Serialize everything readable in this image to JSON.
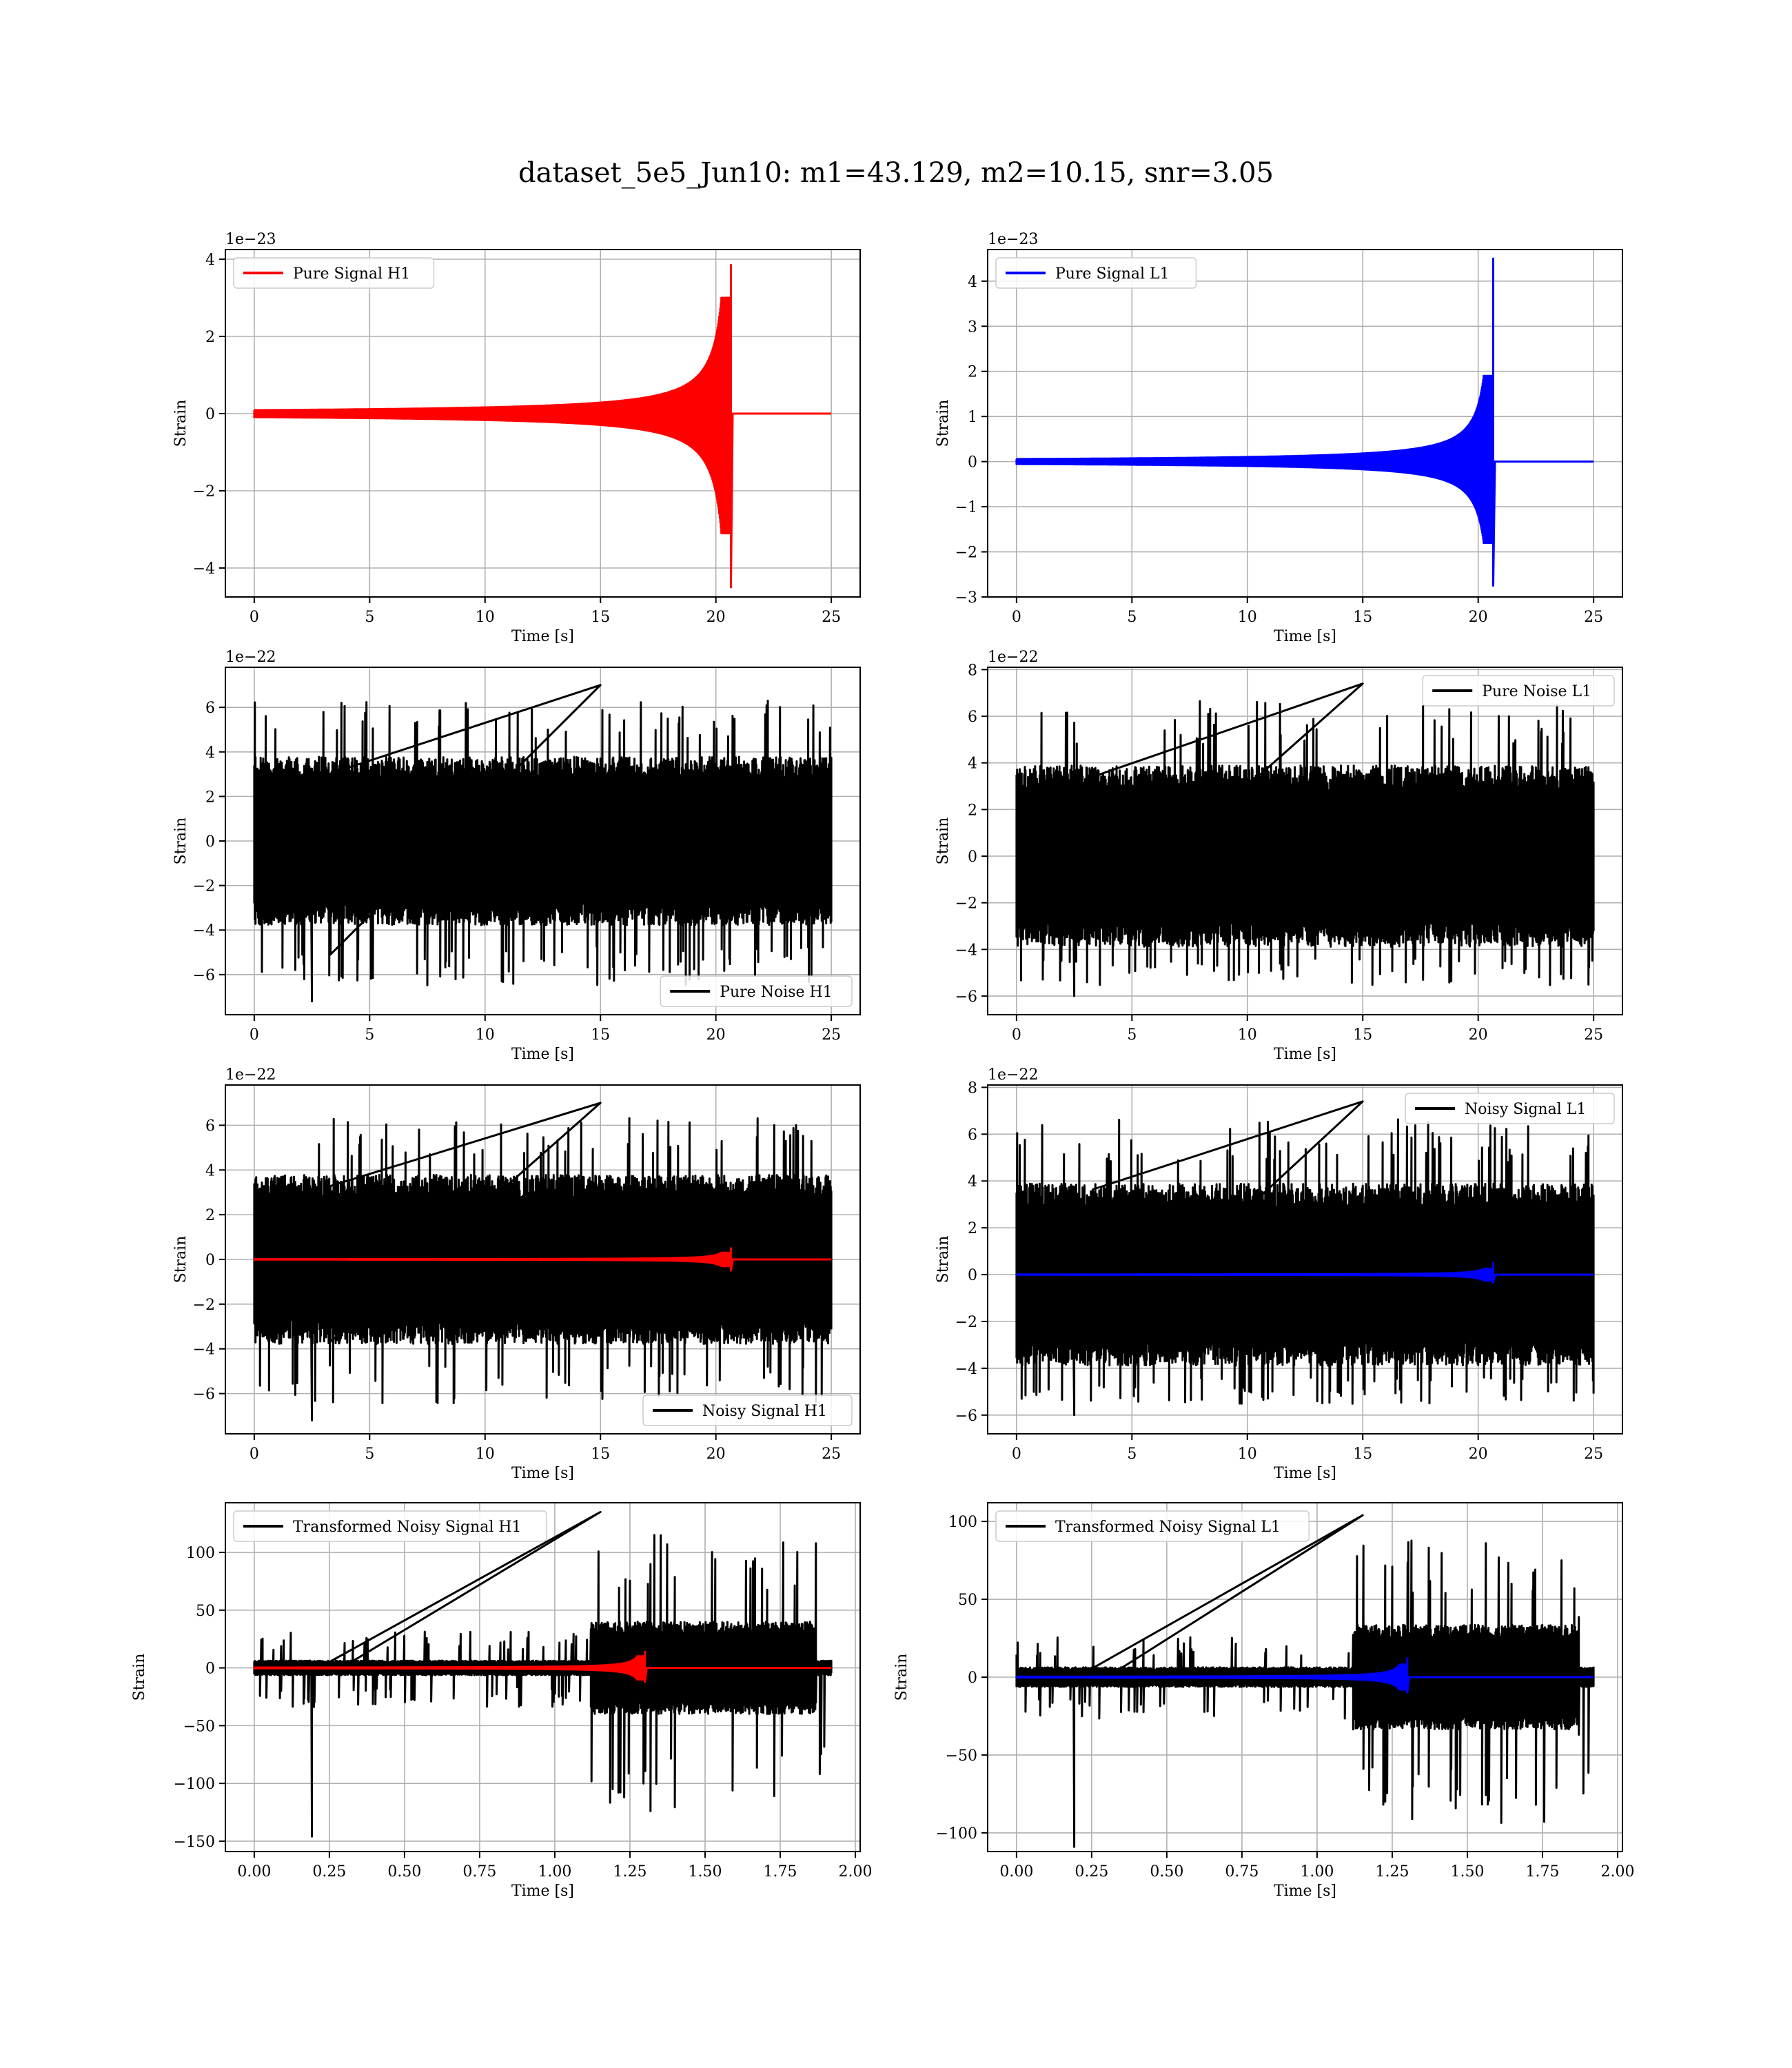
{
  "title": "dataset_5e5_Jun10: m1=43.129, m2=10.15, snr=3.05",
  "colors": {
    "h1_signal": "#ff0000",
    "l1_signal": "#0000ff",
    "noise": "#000000",
    "grid": "#b0b0b0"
  },
  "chart_data": [
    {
      "id": "pure-signal-h1",
      "type": "line",
      "xlabel": "Time [s]",
      "ylabel": "Strain",
      "offset_text": "1e−23",
      "xlim": [
        -1.25,
        26.25
      ],
      "ylim": [
        -4.75,
        4.25
      ],
      "xticks": [
        0,
        5,
        10,
        15,
        20,
        25
      ],
      "xtick_labels": [
        "0",
        "5",
        "10",
        "15",
        "20",
        "25"
      ],
      "yticks": [
        -4,
        -2,
        0,
        2,
        4
      ],
      "ytick_labels": [
        "−4",
        "−2",
        "0",
        "2",
        "4"
      ],
      "legend": "upper-left",
      "series": [
        {
          "name": "Pure Signal H1",
          "color": "#ff0000",
          "kind": "chirp",
          "end": 25,
          "merger": 20.65,
          "env_pos": 3.0,
          "env_neg": -3.1,
          "peak_pos": 3.85,
          "peak_neg": -4.5,
          "x_start": 0
        }
      ]
    },
    {
      "id": "pure-signal-l1",
      "type": "line",
      "xlabel": "Time [s]",
      "ylabel": "Strain",
      "offset_text": "1e−23",
      "xlim": [
        -1.25,
        26.25
      ],
      "ylim": [
        -3.0,
        4.7
      ],
      "xticks": [
        0,
        5,
        10,
        15,
        20,
        25
      ],
      "xtick_labels": [
        "0",
        "5",
        "10",
        "15",
        "20",
        "25"
      ],
      "yticks": [
        -3,
        -2,
        -1,
        0,
        1,
        2,
        3,
        4
      ],
      "ytick_labels": [
        "−3",
        "−2",
        "−1",
        "0",
        "1",
        "2",
        "3",
        "4"
      ],
      "legend": "upper-left",
      "series": [
        {
          "name": "Pure Signal L1",
          "color": "#0000ff",
          "kind": "chirp",
          "end": 25,
          "merger": 20.65,
          "env_pos": 1.9,
          "env_neg": -1.8,
          "peak_pos": 4.5,
          "peak_neg": -2.75,
          "x_start": 0
        }
      ]
    },
    {
      "id": "pure-noise-h1",
      "type": "line",
      "xlabel": "Time [s]",
      "ylabel": "Strain",
      "offset_text": "1e−22",
      "xlim": [
        -1.25,
        26.25
      ],
      "ylim": [
        -7.8,
        7.8
      ],
      "xticks": [
        0,
        5,
        10,
        15,
        20,
        25
      ],
      "xtick_labels": [
        "0",
        "5",
        "10",
        "15",
        "20",
        "25"
      ],
      "yticks": [
        -6,
        -4,
        -2,
        0,
        2,
        4,
        6
      ],
      "ytick_labels": [
        "−6",
        "−4",
        "−2",
        "0",
        "2",
        "4",
        "6"
      ],
      "legend": "lower-right",
      "series": [
        {
          "name": "Pure Noise H1",
          "color": "#000000",
          "kind": "noise",
          "end": 25,
          "band": 3.6,
          "spike_pos": 7.0,
          "spike_neg": -7.2,
          "x_start": 0
        }
      ]
    },
    {
      "id": "pure-noise-l1",
      "type": "line",
      "xlabel": "Time [s]",
      "ylabel": "Strain",
      "offset_text": "1e−22",
      "xlim": [
        -1.25,
        26.25
      ],
      "ylim": [
        -6.8,
        8.1
      ],
      "xticks": [
        0,
        5,
        10,
        15,
        20,
        25
      ],
      "xtick_labels": [
        "0",
        "5",
        "10",
        "15",
        "20",
        "25"
      ],
      "yticks": [
        -6,
        -4,
        -2,
        0,
        2,
        4,
        6,
        8
      ],
      "ytick_labels": [
        "−6",
        "−4",
        "−2",
        "0",
        "2",
        "4",
        "6",
        "8"
      ],
      "legend": "upper-right",
      "series": [
        {
          "name": "Pure Noise L1",
          "color": "#000000",
          "kind": "noise",
          "end": 25,
          "band": 3.7,
          "spike_pos": 7.4,
          "spike_neg": -6.0,
          "x_start": 0
        }
      ]
    },
    {
      "id": "noisy-signal-h1",
      "type": "line",
      "xlabel": "Time [s]",
      "ylabel": "Strain",
      "offset_text": "1e−22",
      "xlim": [
        -1.25,
        26.25
      ],
      "ylim": [
        -7.8,
        7.8
      ],
      "xticks": [
        0,
        5,
        10,
        15,
        20,
        25
      ],
      "xtick_labels": [
        "0",
        "5",
        "10",
        "15",
        "20",
        "25"
      ],
      "yticks": [
        -6,
        -4,
        -2,
        0,
        2,
        4,
        6
      ],
      "ytick_labels": [
        "−6",
        "−4",
        "−2",
        "0",
        "2",
        "4",
        "6"
      ],
      "legend": "lower-right",
      "series": [
        {
          "name": "Noisy Signal H1",
          "color": "#000000",
          "kind": "noise",
          "end": 25,
          "band": 3.6,
          "spike_pos": 7.0,
          "spike_neg": -7.2,
          "x_start": 0
        },
        {
          "name": "",
          "color": "#ff0000",
          "kind": "chirp",
          "end": 25,
          "merger": 20.65,
          "env_pos": 0.3,
          "env_neg": -0.3,
          "peak_pos": 0.5,
          "peak_neg": -0.5,
          "x_start": 0
        }
      ]
    },
    {
      "id": "noisy-signal-l1",
      "type": "line",
      "xlabel": "Time [s]",
      "ylabel": "Strain",
      "offset_text": "1e−22",
      "xlim": [
        -1.25,
        26.25
      ],
      "ylim": [
        -6.8,
        8.1
      ],
      "xticks": [
        0,
        5,
        10,
        15,
        20,
        25
      ],
      "xtick_labels": [
        "0",
        "5",
        "10",
        "15",
        "20",
        "25"
      ],
      "yticks": [
        -6,
        -4,
        -2,
        0,
        2,
        4,
        6,
        8
      ],
      "ytick_labels": [
        "−6",
        "−4",
        "−2",
        "0",
        "2",
        "4",
        "6",
        "8"
      ],
      "legend": "upper-right",
      "series": [
        {
          "name": "Noisy Signal L1",
          "color": "#000000",
          "kind": "noise",
          "end": 25,
          "band": 3.7,
          "spike_pos": 7.4,
          "spike_neg": -6.0,
          "x_start": 0
        },
        {
          "name": "",
          "color": "#0000ff",
          "kind": "chirp",
          "end": 25,
          "merger": 20.65,
          "env_pos": 0.25,
          "env_neg": -0.25,
          "peak_pos": 0.5,
          "peak_neg": -0.35,
          "x_start": 0
        }
      ]
    },
    {
      "id": "transformed-noisy-signal-h1",
      "type": "line",
      "xlabel": "Time [s]",
      "ylabel": "Strain",
      "offset_text": "",
      "xlim": [
        -0.096,
        2.016
      ],
      "ylim": [
        -159,
        143
      ],
      "xticks": [
        0,
        0.25,
        0.5,
        0.75,
        1.0,
        1.25,
        1.5,
        1.75,
        2.0
      ],
      "xtick_labels": [
        "0.00",
        "0.25",
        "0.50",
        "0.75",
        "1.00",
        "1.25",
        "1.50",
        "1.75",
        "2.00"
      ],
      "yticks": [
        -150,
        -100,
        -50,
        0,
        50,
        100
      ],
      "ytick_labels": [
        "−150",
        "−100",
        "−50",
        "0",
        "50",
        "100"
      ],
      "legend": "upper-left",
      "series": [
        {
          "name": "Transformed Noisy Signal H1",
          "color": "#000000",
          "kind": "tnoise",
          "end": 1.92,
          "step_x": 1.12,
          "step_end": 1.87,
          "band_low": 6,
          "band_high": 38,
          "spike_pos": 135,
          "spike_neg": -146,
          "x_start": 0
        },
        {
          "name": "",
          "color": "#ff0000",
          "kind": "tchirp",
          "end": 1.92,
          "merger": 1.3,
          "env_pos": 10,
          "env_neg": -10,
          "peak_pos": 14,
          "peak_neg": -12,
          "x_start": 0
        }
      ]
    },
    {
      "id": "transformed-noisy-signal-l1",
      "type": "line",
      "xlabel": "Time [s]",
      "ylabel": "Strain",
      "offset_text": "",
      "xlim": [
        -0.096,
        2.016
      ],
      "ylim": [
        -112,
        112
      ],
      "xticks": [
        0,
        0.25,
        0.5,
        0.75,
        1.0,
        1.25,
        1.5,
        1.75,
        2.0
      ],
      "xtick_labels": [
        "0.00",
        "0.25",
        "0.50",
        "0.75",
        "1.00",
        "1.25",
        "1.50",
        "1.75",
        "2.00"
      ],
      "yticks": [
        -100,
        -50,
        0,
        50,
        100
      ],
      "ytick_labels": [
        "−100",
        "−50",
        "0",
        "50",
        "100"
      ],
      "legend": "upper-left",
      "series": [
        {
          "name": "Transformed Noisy Signal L1",
          "color": "#000000",
          "kind": "tnoise",
          "end": 1.92,
          "step_x": 1.12,
          "step_end": 1.87,
          "band_low": 6,
          "band_high": 32,
          "spike_pos": 104,
          "spike_neg": -109,
          "x_start": 0
        },
        {
          "name": "",
          "color": "#0000ff",
          "kind": "tchirp",
          "end": 1.92,
          "merger": 1.3,
          "env_pos": 8,
          "env_neg": -8,
          "peak_pos": 12,
          "peak_neg": -10,
          "x_start": 0
        }
      ]
    }
  ]
}
